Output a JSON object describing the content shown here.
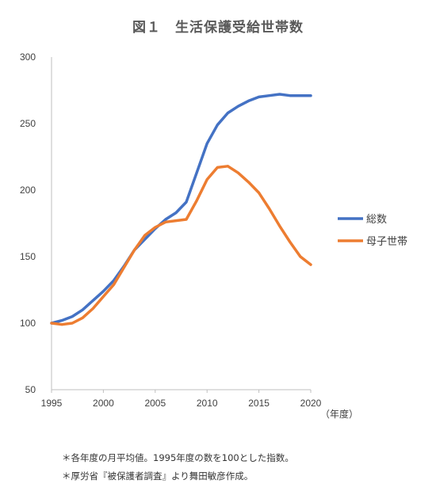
{
  "chart_data": {
    "type": "line",
    "title": "図１　生活保護受給世帯数",
    "xlabel": "（年度）",
    "ylabel": "",
    "ylim": [
      50,
      300
    ],
    "xlim": [
      1995,
      2020
    ],
    "yticks": [
      50,
      100,
      150,
      200,
      250,
      300
    ],
    "xticks": [
      1995,
      2000,
      2005,
      2010,
      2015,
      2020
    ],
    "grid": false,
    "legend_position": "right",
    "x": [
      1995,
      1996,
      1997,
      1998,
      1999,
      2000,
      2001,
      2002,
      2003,
      2004,
      2005,
      2006,
      2007,
      2008,
      2009,
      2010,
      2011,
      2012,
      2013,
      2014,
      2015,
      2016,
      2017,
      2018,
      2019,
      2020
    ],
    "series": [
      {
        "name": "総数",
        "color": "#4472C4",
        "values": [
          100,
          102,
          105,
          110,
          117,
          124,
          132,
          143,
          155,
          163,
          171,
          178,
          183,
          191,
          213,
          235,
          249,
          258,
          263,
          267,
          270,
          271,
          272,
          271,
          271,
          271
        ]
      },
      {
        "name": "母子世帯",
        "color": "#ED7D31",
        "values": [
          100,
          99,
          100,
          104,
          111,
          120,
          129,
          142,
          155,
          166,
          172,
          176,
          177,
          178,
          192,
          208,
          217,
          218,
          213,
          206,
          198,
          186,
          173,
          161,
          150,
          144
        ]
      }
    ]
  },
  "notes": [
    "＊各年度の月平均値。1995年度の数を100とした指数。",
    "＊厚労省『被保護者調査』より舞田敏彦作成。"
  ]
}
